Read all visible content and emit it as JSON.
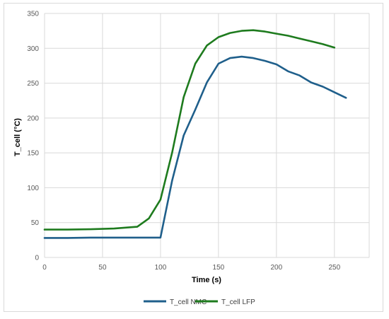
{
  "chart_data": {
    "type": "line",
    "title": "",
    "xlabel": "Time (s)",
    "ylabel": "T_cell (°C)",
    "xlim": [
      0,
      280
    ],
    "ylim": [
      0,
      350
    ],
    "xticks": [
      0,
      50,
      100,
      150,
      200,
      250
    ],
    "yticks": [
      0,
      50,
      100,
      150,
      200,
      250,
      300,
      350
    ],
    "grid": true,
    "legend_position": "bottom",
    "series": [
      {
        "name": "T_cell NMC",
        "color": "#1f5f8b",
        "x": [
          0,
          20,
          40,
          60,
          80,
          90,
          100,
          110,
          120,
          130,
          140,
          150,
          160,
          170,
          180,
          190,
          200,
          210,
          220,
          230,
          240,
          250,
          260
        ],
        "y": [
          28,
          28,
          28.5,
          28.5,
          28.5,
          28.5,
          28.5,
          110,
          175,
          212,
          251,
          278,
          286,
          288,
          286,
          282,
          277,
          267,
          261,
          251,
          245,
          237,
          229
        ]
      },
      {
        "name": "T_cell LFP",
        "color": "#1e7b1e",
        "x": [
          0,
          20,
          40,
          60,
          80,
          90,
          100,
          110,
          120,
          130,
          140,
          150,
          160,
          170,
          180,
          190,
          200,
          210,
          220,
          230,
          240,
          250
        ],
        "y": [
          40,
          40,
          40.5,
          41.5,
          44,
          56,
          83,
          150,
          230,
          278,
          304,
          316,
          322,
          325,
          326,
          324,
          321,
          318,
          314,
          310,
          306,
          301
        ]
      }
    ]
  }
}
